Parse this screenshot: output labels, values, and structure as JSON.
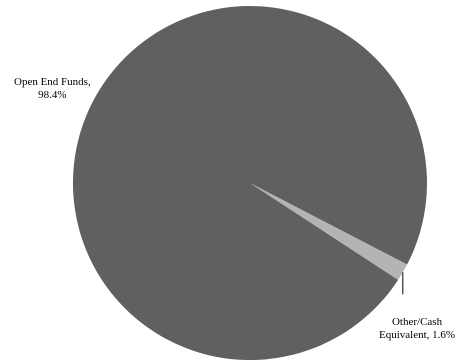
{
  "chart_data": {
    "type": "pie",
    "slices": [
      {
        "label": "Open End Funds",
        "value": 98.4,
        "color": "#606060"
      },
      {
        "label": "Other/Cash Equivalent",
        "value": 1.6,
        "color": "#b4b4b4"
      }
    ],
    "labels": {
      "open_line1": "Open End Funds,",
      "open_line2": "98.4%",
      "other_line1": "Other/Cash",
      "other_line2": "Equivalent, 1.6%"
    }
  }
}
